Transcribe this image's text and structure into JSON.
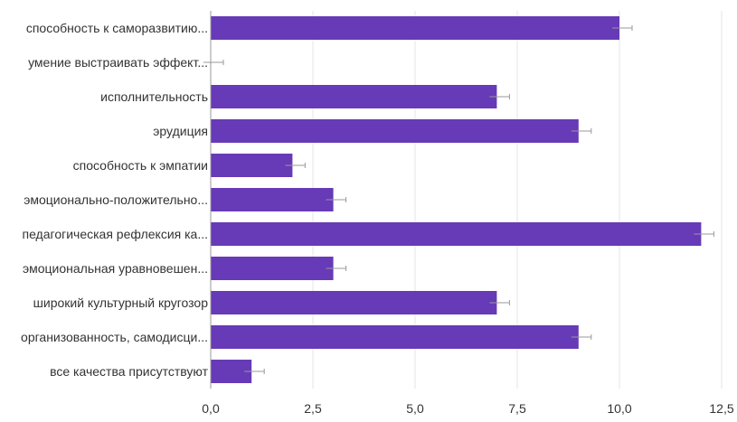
{
  "chart_data": {
    "type": "bar",
    "orientation": "horizontal",
    "title": "",
    "xlabel": "",
    "ylabel": "",
    "categories": [
      "способность к саморазвитию...",
      "умение выстраивать эффект...",
      "исполнительность",
      "эрудиция",
      "способность к эмпатии",
      "эмоционально-положительно...",
      "педагогическая рефлексия ка...",
      "эмоциональная уравновешен...",
      "широкий культурный кругозор",
      "организованность, самодисци...",
      "все качества присутствуют"
    ],
    "values": [
      10,
      0,
      7,
      9,
      2,
      3,
      12,
      3,
      7,
      9,
      1
    ],
    "xlim": [
      0,
      12.5
    ],
    "x_ticks": [
      0,
      2.5,
      5,
      7.5,
      10,
      12.5
    ],
    "x_tick_labels": [
      "0,0",
      "2,5",
      "5,0",
      "7,5",
      "10,0",
      "12,5"
    ],
    "grid": true,
    "legend": "none",
    "colors": {
      "bar": "#673ab7",
      "grid": "#e6e6e6",
      "error_bar": "#999999",
      "text": "#333333"
    }
  }
}
